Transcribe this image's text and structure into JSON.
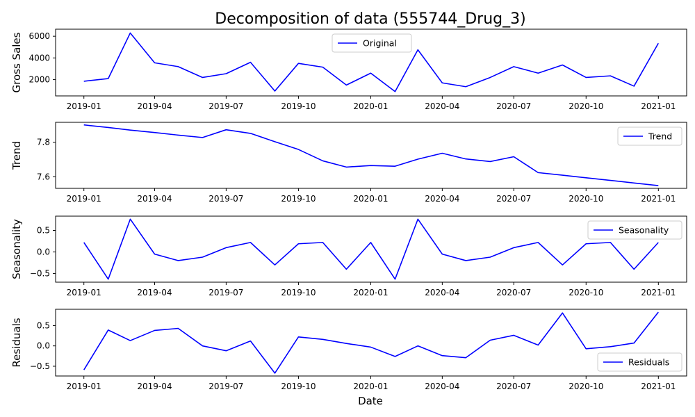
{
  "title": "Decomposition of data (555744_Drug_3)",
  "xlabel": "Date",
  "line_color": "#0000ff",
  "chart_data": [
    {
      "type": "line",
      "ylabel": "Gross Sales",
      "legend": "Original",
      "legend_loc": "upper-center",
      "grid": false,
      "x": [
        "2019-01-01",
        "2019-02-01",
        "2019-03-01",
        "2019-04-01",
        "2019-05-01",
        "2019-06-01",
        "2019-07-01",
        "2019-08-01",
        "2019-09-01",
        "2019-10-01",
        "2019-11-01",
        "2019-12-01",
        "2020-01-01",
        "2020-02-01",
        "2020-03-01",
        "2020-04-01",
        "2020-05-01",
        "2020-06-01",
        "2020-07-01",
        "2020-08-01",
        "2020-09-01",
        "2020-10-01",
        "2020-11-01",
        "2020-12-01",
        "2021-01-01"
      ],
      "y": [
        1850,
        2100,
        6300,
        3550,
        3200,
        2200,
        2550,
        3600,
        950,
        3500,
        3150,
        1500,
        2600,
        900,
        4750,
        1700,
        1350,
        2200,
        3200,
        2600,
        3350,
        2200,
        2350,
        1400,
        5350
      ],
      "yticks": [
        2000,
        4000,
        6000
      ],
      "yticklabels": [
        "2000",
        "4000",
        "6000"
      ],
      "ylim": [
        500,
        6650
      ]
    },
    {
      "type": "line",
      "ylabel": "Trend",
      "legend": "Trend",
      "legend_loc": "upper-right",
      "grid": false,
      "x": [
        "2019-01-01",
        "2019-02-01",
        "2019-03-01",
        "2019-04-01",
        "2019-05-01",
        "2019-06-01",
        "2019-07-01",
        "2019-08-01",
        "2019-09-01",
        "2019-10-01",
        "2019-11-01",
        "2019-12-01",
        "2020-01-01",
        "2020-02-01",
        "2020-03-01",
        "2020-04-01",
        "2020-05-01",
        "2020-06-01",
        "2020-07-01",
        "2020-08-01",
        "2020-09-01",
        "2020-10-01",
        "2020-11-01",
        "2020-12-01",
        "2021-01-01"
      ],
      "y": [
        7.9,
        7.885,
        7.87,
        7.856,
        7.841,
        7.827,
        7.872,
        7.851,
        7.803,
        7.758,
        7.692,
        7.656,
        7.665,
        7.661,
        7.702,
        7.736,
        7.703,
        7.688,
        7.716,
        7.624,
        7.609,
        7.594,
        7.579,
        7.564,
        7.549
      ],
      "yticks": [
        7.6,
        7.8
      ],
      "yticklabels": [
        "7.6",
        "7.8"
      ],
      "ylim": [
        7.533,
        7.915
      ]
    },
    {
      "type": "line",
      "ylabel": "Seasonality",
      "legend": "Seasonality",
      "legend_loc": "upper-right",
      "grid": false,
      "x": [
        "2019-01-01",
        "2019-02-01",
        "2019-03-01",
        "2019-04-01",
        "2019-05-01",
        "2019-06-01",
        "2019-07-01",
        "2019-08-01",
        "2019-09-01",
        "2019-10-01",
        "2019-11-01",
        "2019-12-01",
        "2020-01-01",
        "2020-02-01",
        "2020-03-01",
        "2020-04-01",
        "2020-05-01",
        "2020-06-01",
        "2020-07-01",
        "2020-08-01",
        "2020-09-01",
        "2020-10-01",
        "2020-11-01",
        "2020-12-01",
        "2021-01-01"
      ],
      "y": [
        0.22,
        -0.63,
        0.76,
        -0.05,
        -0.2,
        -0.12,
        0.1,
        0.22,
        -0.3,
        0.19,
        0.22,
        -0.4,
        0.22,
        -0.63,
        0.76,
        -0.05,
        -0.2,
        -0.12,
        0.1,
        0.22,
        -0.3,
        0.19,
        0.22,
        -0.4,
        0.22
      ],
      "yticks": [
        -0.5,
        0.0,
        0.5
      ],
      "yticklabels": [
        "−0.5",
        "0.0",
        "0.5"
      ],
      "ylim": [
        -0.7,
        0.83
      ]
    },
    {
      "type": "line",
      "ylabel": "Residuals",
      "legend": "Residuals",
      "legend_loc": "lower-right",
      "grid": false,
      "x": [
        "2019-01-01",
        "2019-02-01",
        "2019-03-01",
        "2019-04-01",
        "2019-05-01",
        "2019-06-01",
        "2019-07-01",
        "2019-08-01",
        "2019-09-01",
        "2019-10-01",
        "2019-11-01",
        "2019-12-01",
        "2020-01-01",
        "2020-02-01",
        "2020-03-01",
        "2020-04-01",
        "2020-05-01",
        "2020-06-01",
        "2020-07-01",
        "2020-08-01",
        "2020-09-01",
        "2020-10-01",
        "2020-11-01",
        "2020-12-01",
        "2021-01-01"
      ],
      "y": [
        -0.59,
        0.39,
        0.13,
        0.38,
        0.43,
        0.0,
        -0.12,
        0.12,
        -0.67,
        0.22,
        0.16,
        0.06,
        -0.03,
        -0.26,
        0.0,
        -0.24,
        -0.29,
        0.14,
        0.26,
        0.02,
        0.81,
        -0.07,
        -0.02,
        0.07,
        0.83
      ],
      "yticks": [
        -0.5,
        0.0,
        0.5
      ],
      "yticklabels": [
        "−0.5",
        "0.0",
        "0.5"
      ],
      "ylim": [
        -0.74,
        0.9
      ]
    }
  ],
  "xaxis": {
    "ticks": [
      "2019-01-01",
      "2019-04-01",
      "2019-07-01",
      "2019-10-01",
      "2020-01-01",
      "2020-04-01",
      "2020-07-01",
      "2020-10-01",
      "2021-01-01"
    ],
    "ticklabels": [
      "2019-01",
      "2019-04",
      "2019-07",
      "2019-10",
      "2020-01",
      "2020-04",
      "2020-07",
      "2020-10",
      "2021-01"
    ],
    "xlim": [
      "2018-11-26",
      "2021-02-06"
    ]
  }
}
